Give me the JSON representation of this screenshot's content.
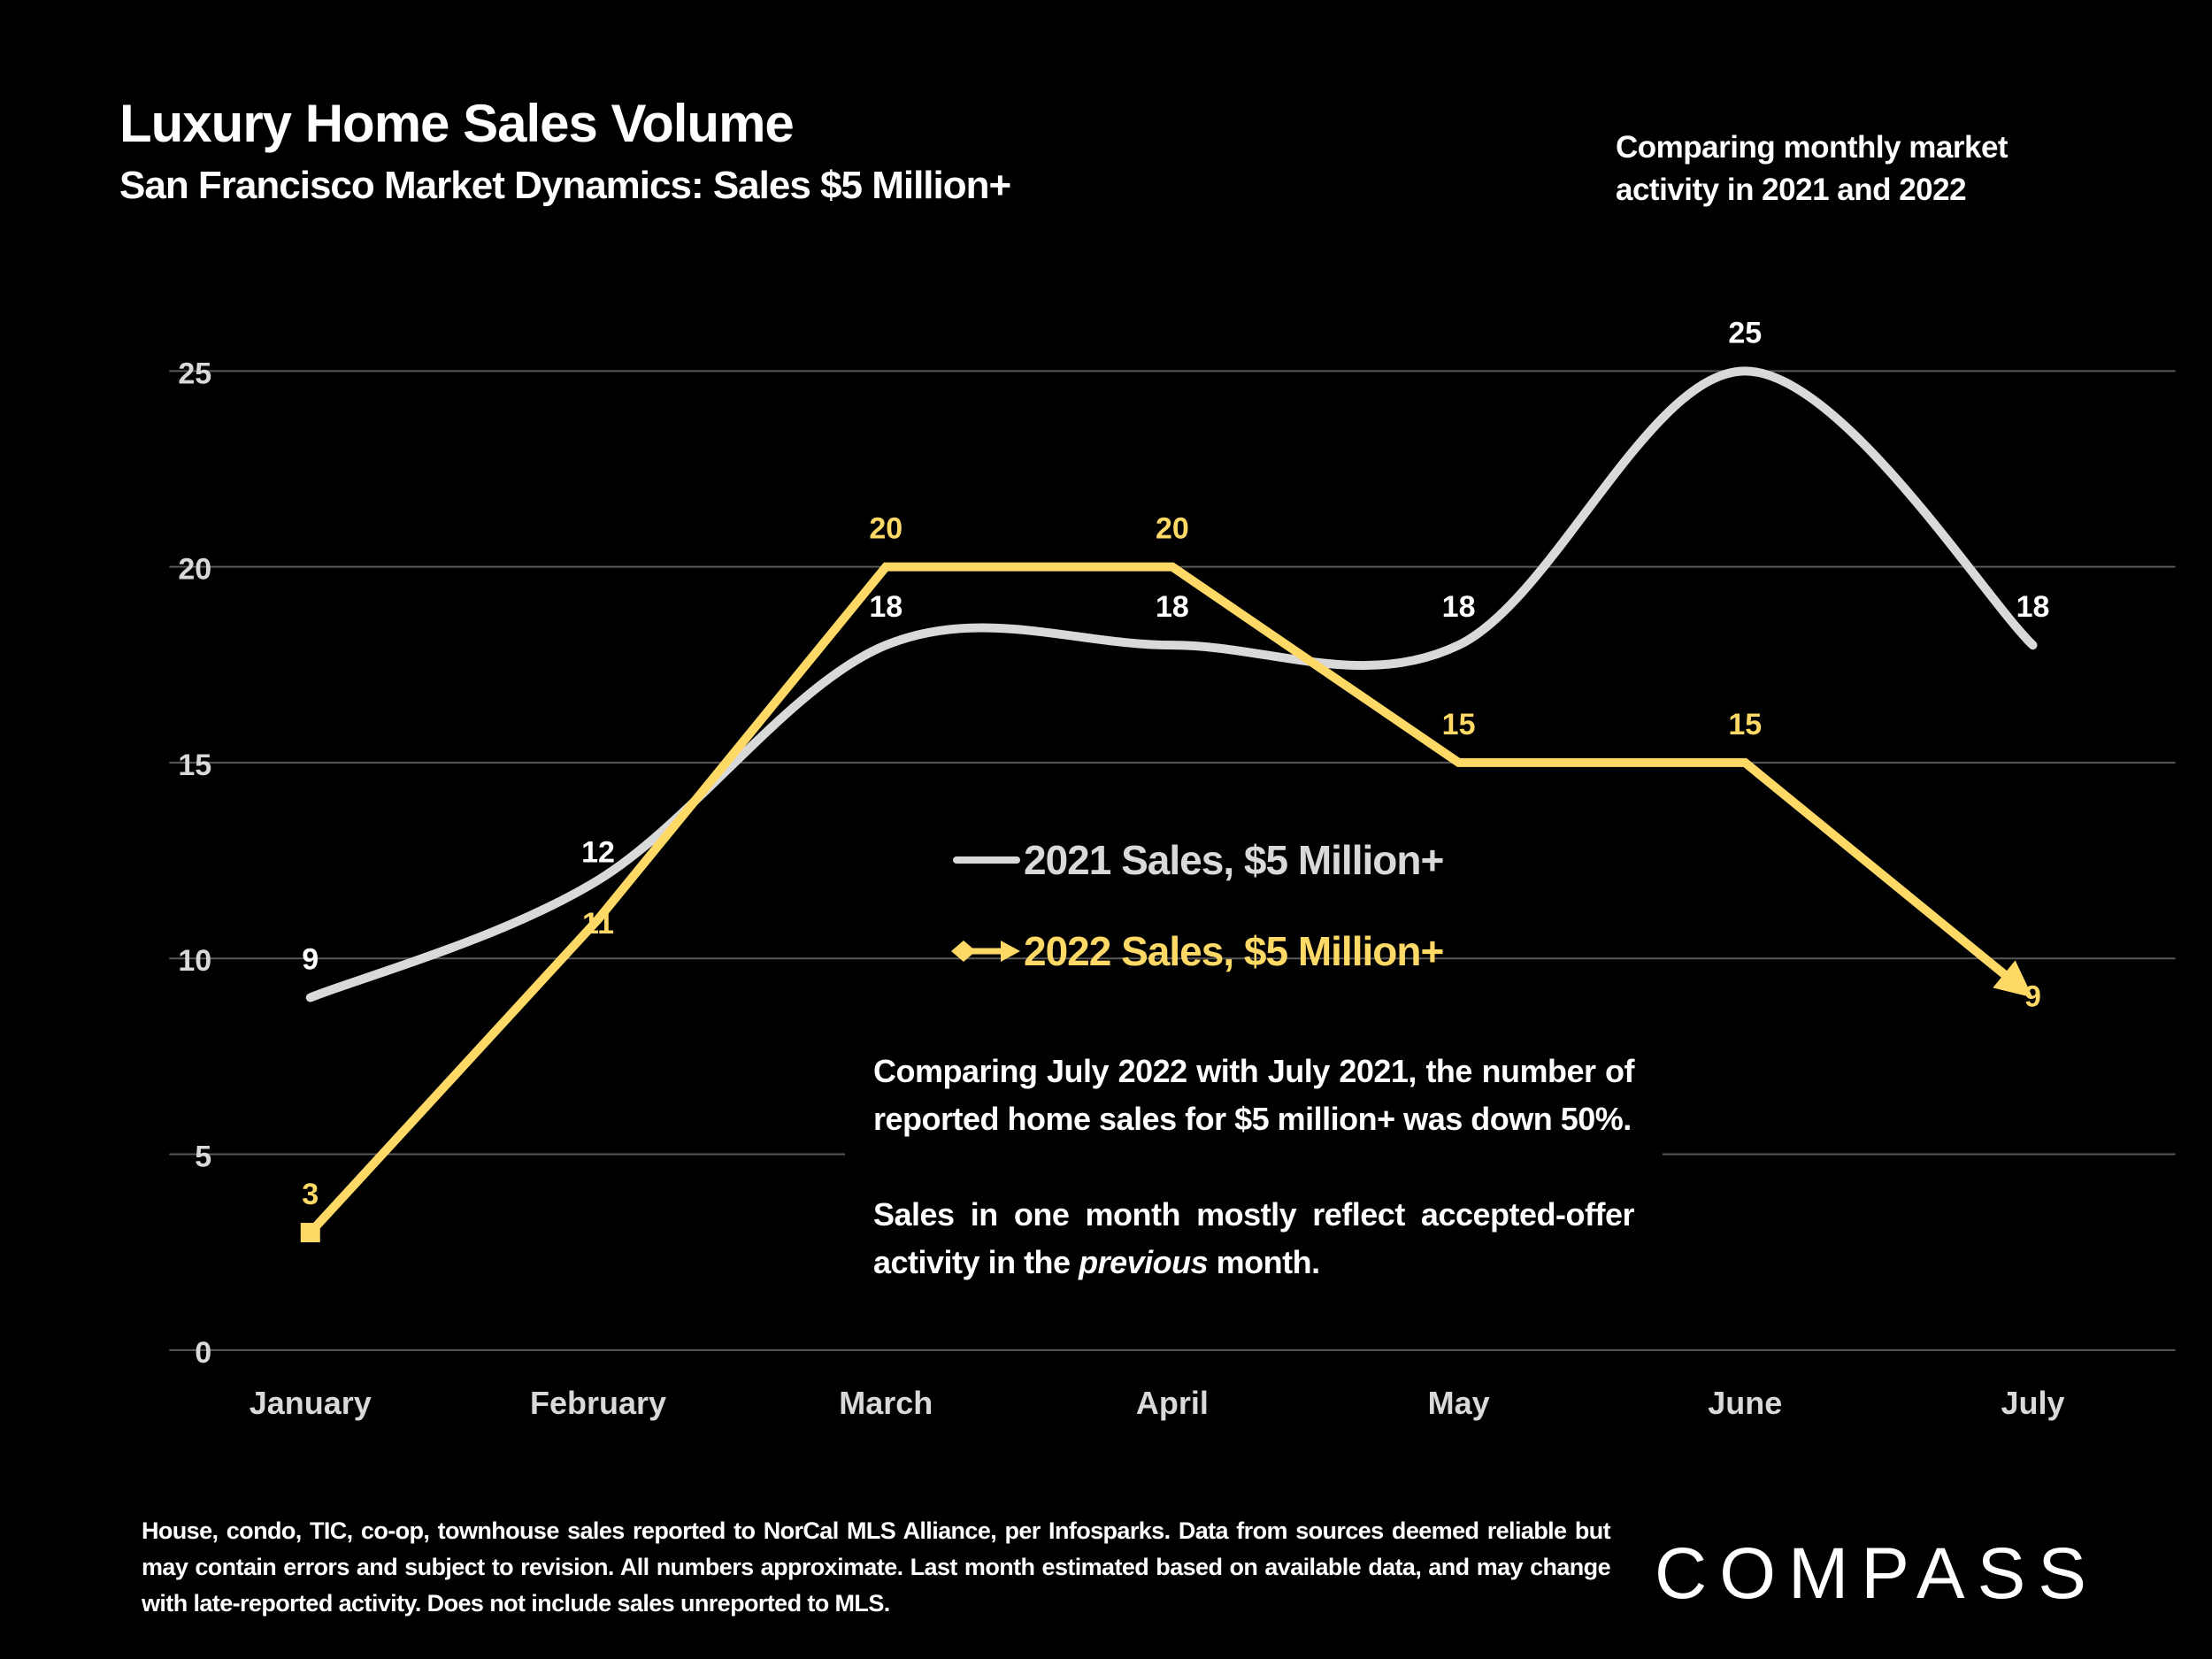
{
  "header": {
    "title": "Luxury Home Sales Volume",
    "subtitle": "San Francisco Market Dynamics: Sales $5 Million+",
    "note": "Comparing monthly market activity in 2021 and 2022"
  },
  "commentary": {
    "paragraph1": "Comparing July 2022 with July 2021, the number of reported home sales for $5 million+ was down 50%.",
    "paragraph2_before": "Sales in one month mostly reflect accepted-offer activity in the ",
    "paragraph2_italic": "previous",
    "paragraph2_after": " month."
  },
  "footnote": "House, condo, TIC, co-op, townhouse sales reported to NorCal MLS Alliance, per Infosparks. Data from sources deemed reliable but may contain errors and subject to revision. All numbers approximate. Last month estimated based on available data, and may change with late-reported activity. Does not include sales unreported to MLS.",
  "logo": {
    "text": "COMPASS"
  },
  "colors": {
    "background": "#000000",
    "series_2021": "#D9D9D9",
    "series_2022": "#FFD966",
    "grid": "#595959",
    "text": "#FFFFFF"
  },
  "chart_data": {
    "type": "line",
    "title": "Luxury Home Sales Volume",
    "subtitle": "San Francisco Market Dynamics: Sales $5 Million+",
    "xlabel": "",
    "ylabel": "",
    "categories": [
      "January",
      "February",
      "March",
      "April",
      "May",
      "June",
      "July"
    ],
    "ylim": [
      0,
      25
    ],
    "yticks": [
      0,
      5,
      10,
      15,
      20,
      25
    ],
    "grid": true,
    "legend_position": "center",
    "series": [
      {
        "name": "2021 Sales, $5 Million+",
        "values": [
          9,
          12,
          18,
          18,
          18,
          25,
          18
        ],
        "color": "#D9D9D9",
        "smooth": true,
        "marker": "none"
      },
      {
        "name": "2022 Sales, $5 Million+",
        "values": [
          3,
          11,
          20,
          20,
          15,
          15,
          9
        ],
        "color": "#FFD966",
        "smooth": false,
        "start_marker": "square",
        "end_marker": "arrow"
      }
    ]
  }
}
